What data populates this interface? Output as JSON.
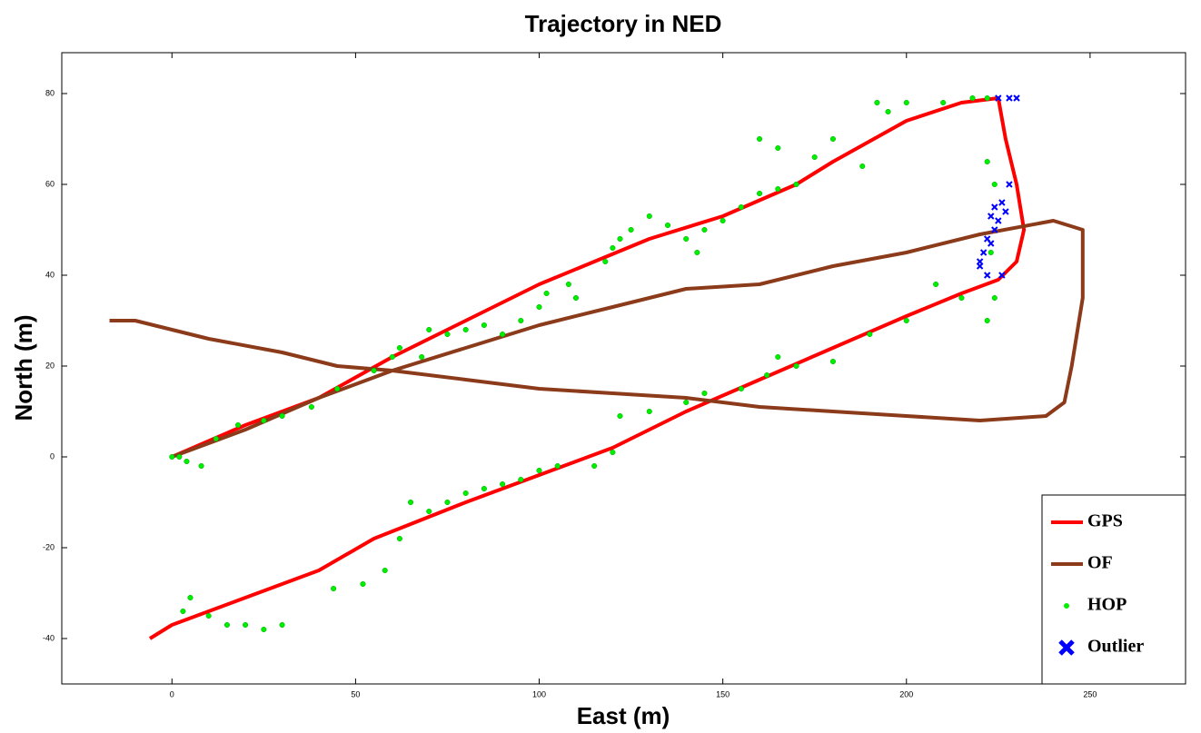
{
  "chart_data": {
    "type": "trajectory",
    "title": "Trajectory in NED",
    "xlabel": "East (m)",
    "ylabel": "North (m)",
    "xlim": [
      -30,
      276
    ],
    "ylim": [
      -50,
      89
    ],
    "xticks": [
      0,
      50,
      100,
      150,
      200,
      250
    ],
    "yticks": [
      -40,
      -20,
      0,
      20,
      40,
      60,
      80
    ],
    "legend": "lower right",
    "series": [
      {
        "name": "GPS",
        "kind": "line",
        "color": "#ff0000",
        "x": [
          0,
          20,
          40,
          60,
          80,
          100,
          130,
          150,
          170,
          180,
          200,
          215,
          225,
          227,
          230,
          232,
          230,
          225,
          215,
          200,
          180,
          160,
          140,
          120,
          100,
          80,
          55,
          40,
          20,
          0,
          -6
        ],
        "values": [
          0,
          7,
          13,
          22,
          30,
          38,
          48,
          53,
          60,
          65,
          74,
          78,
          79,
          70,
          60,
          50,
          43,
          39,
          36,
          31,
          24,
          17,
          10,
          2,
          -4,
          -10,
          -18,
          -25,
          -31,
          -37,
          -40
        ]
      },
      {
        "name": "OF",
        "kind": "line",
        "color": "#8b3a1a",
        "x": [
          0,
          20,
          40,
          60,
          80,
          100,
          120,
          140,
          160,
          180,
          200,
          220,
          240,
          248,
          248,
          245,
          243,
          238,
          220,
          200,
          180,
          160,
          140,
          120,
          100,
          80,
          60,
          45,
          30,
          10,
          0,
          -10,
          -17
        ],
        "values": [
          0,
          6,
          13,
          19,
          24,
          29,
          33,
          37,
          38,
          42,
          45,
          49,
          52,
          50,
          35,
          20,
          12,
          9,
          8,
          9,
          10,
          11,
          13,
          14,
          15,
          17,
          19,
          20,
          23,
          26,
          28,
          30,
          30
        ]
      },
      {
        "name": "HOP",
        "kind": "scatter",
        "color": "#00ee00",
        "x": [
          0,
          2,
          4,
          8,
          12,
          18,
          25,
          30,
          38,
          45,
          55,
          60,
          62,
          68,
          70,
          75,
          80,
          85,
          90,
          95,
          100,
          102,
          108,
          110,
          118,
          120,
          122,
          125,
          130,
          135,
          140,
          145,
          143,
          150,
          155,
          160,
          165,
          170,
          160,
          165,
          175,
          180,
          188,
          192,
          195,
          200,
          210,
          218,
          222,
          224,
          222,
          223,
          224,
          222,
          215,
          208,
          200,
          190,
          180,
          170,
          165,
          162,
          155,
          145,
          140,
          130,
          122,
          120,
          115,
          105,
          100,
          95,
          90,
          85,
          80,
          75,
          70,
          65,
          62,
          58,
          52,
          44,
          30,
          25,
          20,
          15,
          10,
          5,
          3
        ],
        "values": [
          0,
          0,
          -1,
          -2,
          4,
          7,
          8,
          9,
          11,
          15,
          19,
          22,
          24,
          22,
          28,
          27,
          28,
          29,
          27,
          30,
          33,
          36,
          38,
          35,
          43,
          46,
          48,
          50,
          53,
          51,
          48,
          50,
          45,
          52,
          55,
          58,
          59,
          60,
          70,
          68,
          66,
          70,
          64,
          78,
          76,
          78,
          78,
          79,
          79,
          60,
          65,
          45,
          35,
          30,
          35,
          38,
          30,
          27,
          21,
          20,
          22,
          18,
          15,
          14,
          12,
          10,
          9,
          1,
          -2,
          -2,
          -3,
          -5,
          -6,
          -7,
          -8,
          -10,
          -12,
          -10,
          -18,
          -25,
          -28,
          -29,
          -37,
          -38,
          -37,
          -37,
          -35,
          -31,
          -34
        ]
      },
      {
        "name": "Outlier",
        "kind": "scatter",
        "color": "#0000ff",
        "x": [
          220,
          221,
          222,
          223,
          224,
          225,
          226,
          227,
          228,
          224,
          223,
          222,
          226,
          225,
          228,
          230,
          220
        ],
        "values": [
          43,
          45,
          48,
          47,
          50,
          52,
          56,
          54,
          60,
          55,
          53,
          40,
          40,
          79,
          79,
          79,
          42
        ]
      }
    ]
  }
}
